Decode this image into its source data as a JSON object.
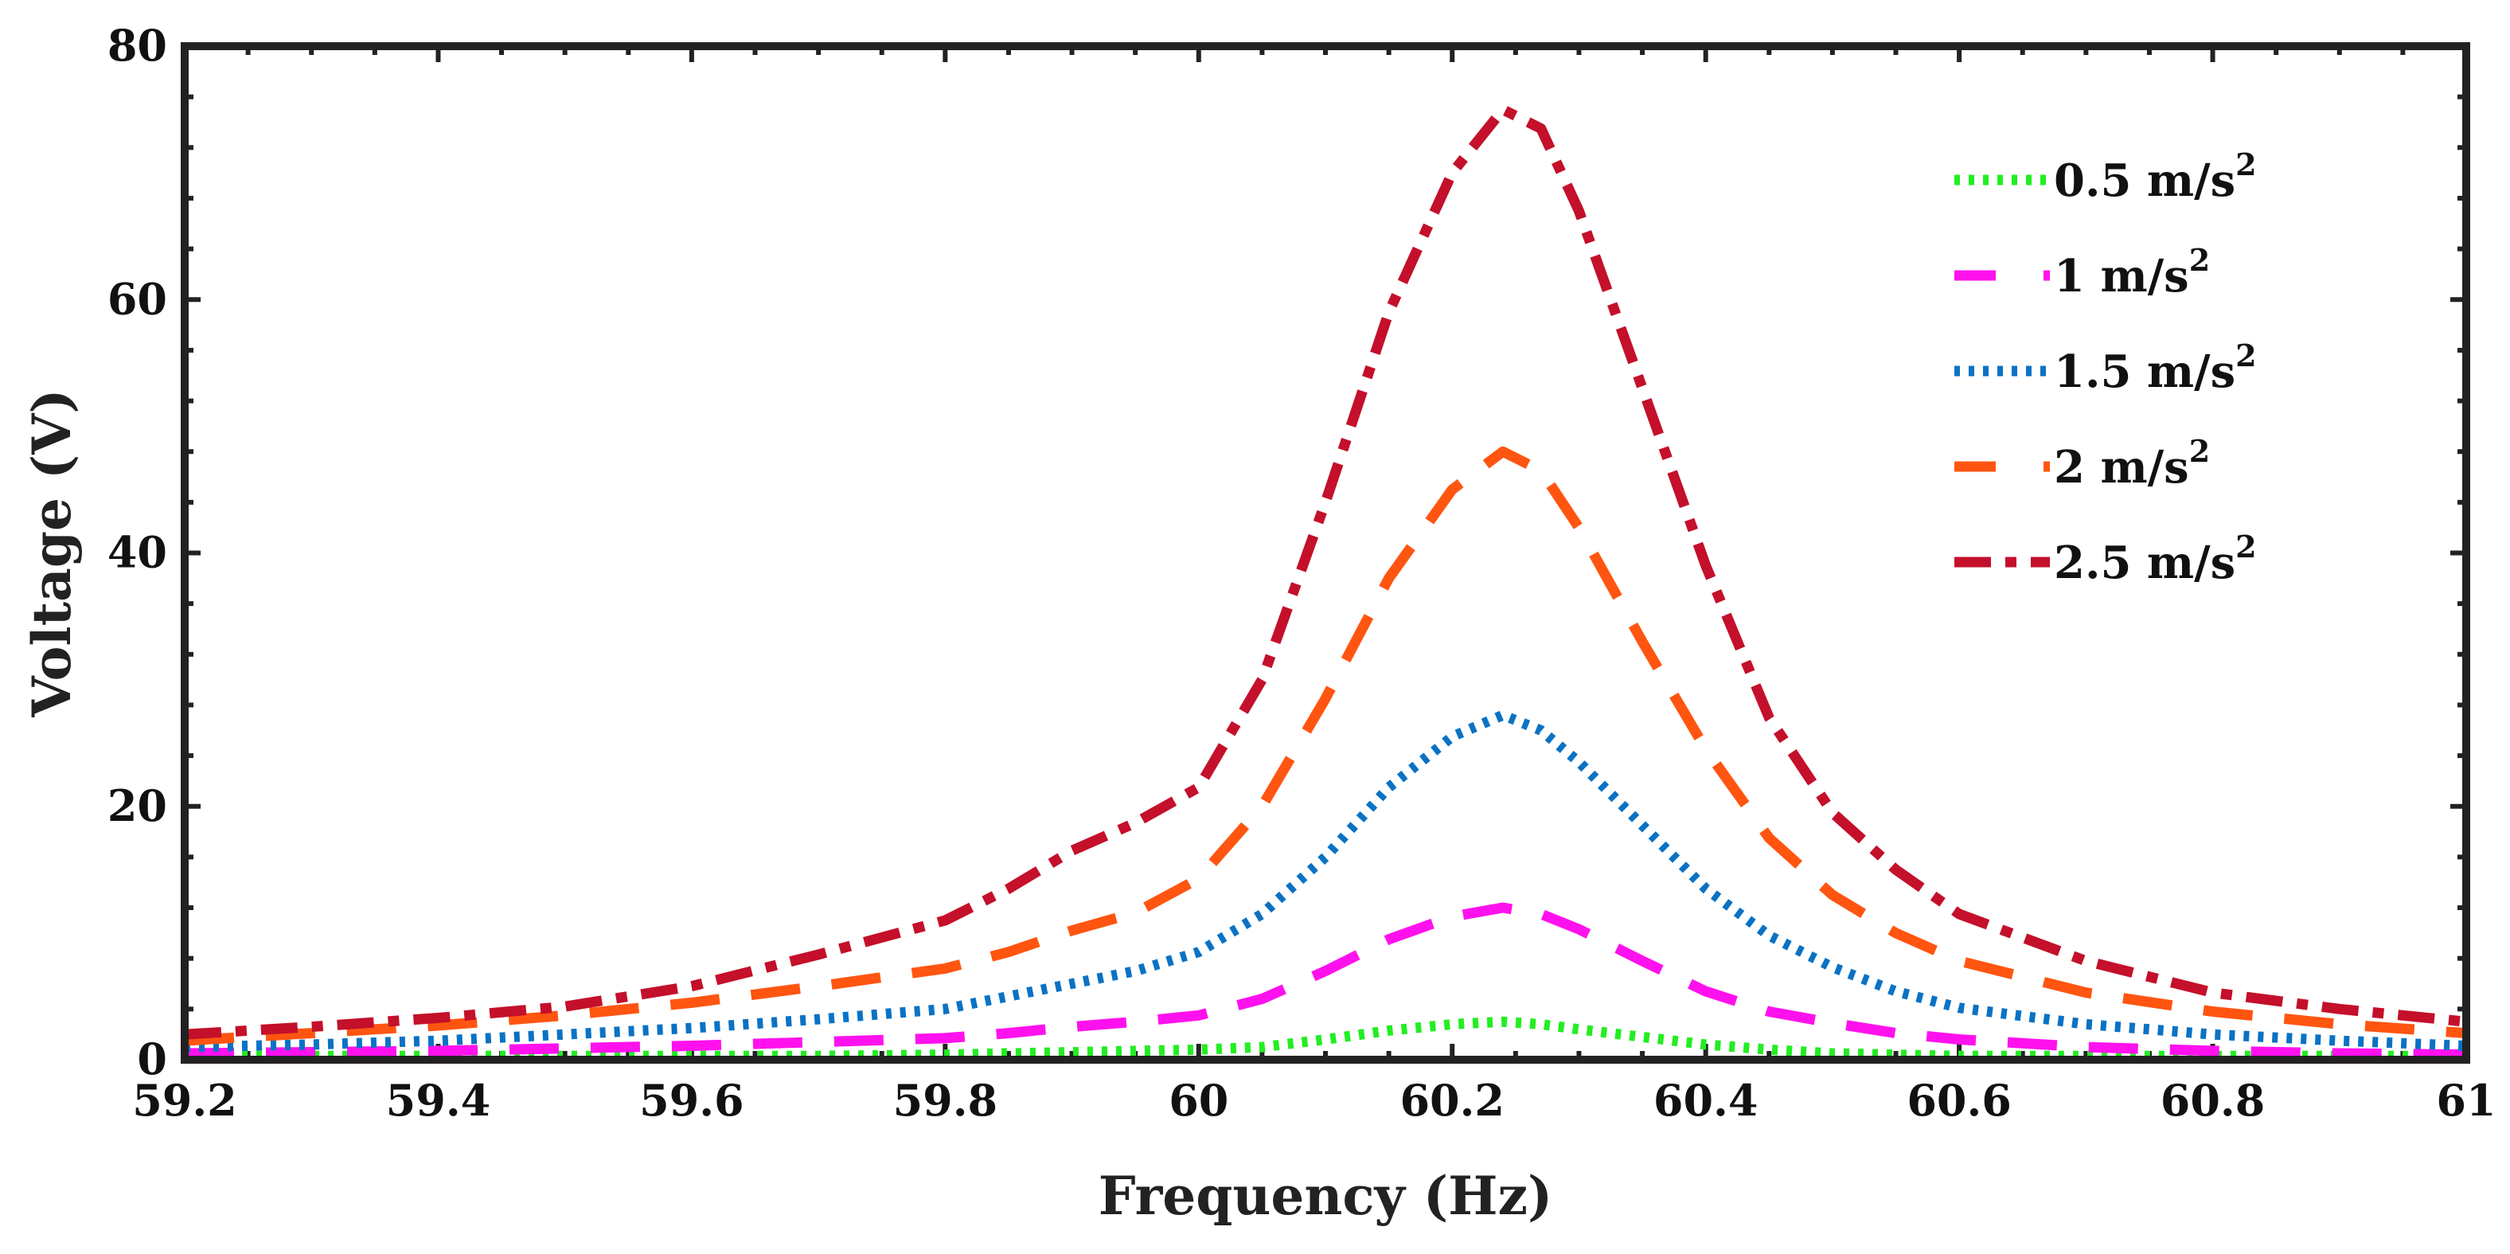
{
  "chart_data": {
    "type": "line",
    "title": "",
    "xlabel": "Frequency (Hz)",
    "ylabel": "Voltage (V)",
    "xlim": [
      59.2,
      61
    ],
    "ylim": [
      0,
      80
    ],
    "xticks": [
      59.2,
      59.4,
      59.6,
      59.8,
      60,
      60.2,
      60.4,
      60.6,
      60.8,
      61
    ],
    "xtick_labels": [
      "59.2",
      "59.4",
      "59.6",
      "59.8",
      "60",
      "60.2",
      "60.4",
      "60.6",
      "60.8",
      "61"
    ],
    "yticks": [
      0,
      20,
      40,
      60,
      80
    ],
    "ytick_labels": [
      "0",
      "20",
      "40",
      "60",
      "80"
    ],
    "grid": false,
    "legend_position": "top-right",
    "x": [
      59.2,
      59.3,
      59.4,
      59.5,
      59.6,
      59.7,
      59.8,
      59.85,
      59.9,
      59.95,
      60.0,
      60.05,
      60.1,
      60.15,
      60.2,
      60.24,
      60.27,
      60.3,
      60.35,
      60.4,
      60.45,
      60.5,
      60.55,
      60.6,
      60.7,
      60.8,
      60.9,
      61.0
    ],
    "series": [
      {
        "name": "0.5 m/s",
        "superscript": "2",
        "color": "#22ee22",
        "style": "dotted",
        "values": [
          0.3,
          0.3,
          0.3,
          0.3,
          0.3,
          0.3,
          0.4,
          0.5,
          0.6,
          0.7,
          0.8,
          1.0,
          1.6,
          2.3,
          2.8,
          3.0,
          2.8,
          2.4,
          1.8,
          1.2,
          0.8,
          0.5,
          0.4,
          0.3,
          0.3,
          0.3,
          0.3,
          0.3
        ]
      },
      {
        "name": "1 m/s",
        "superscript": "2",
        "color": "#ff11ee",
        "style": "dashed",
        "values": [
          0.5,
          0.6,
          0.7,
          0.9,
          1.1,
          1.4,
          1.7,
          2.1,
          2.6,
          3.0,
          3.5,
          4.8,
          7.0,
          9.5,
          11.3,
          12.0,
          11.5,
          10.3,
          7.8,
          5.4,
          3.8,
          2.9,
          2.1,
          1.6,
          1.0,
          0.7,
          0.5,
          0.4
        ]
      },
      {
        "name": "1.5 m/s",
        "superscript": "2",
        "color": "#0a72c4",
        "style": "dotted",
        "values": [
          1.0,
          1.2,
          1.5,
          2.0,
          2.5,
          3.2,
          4.0,
          5.0,
          6.0,
          7.0,
          8.5,
          11.5,
          16.0,
          21.5,
          25.5,
          27.2,
          26.0,
          23.5,
          18.5,
          13.5,
          9.8,
          7.3,
          5.4,
          4.1,
          2.8,
          2.0,
          1.5,
          1.1
        ]
      },
      {
        "name": "2 m/s",
        "superscript": "2",
        "color": "#ff5511",
        "style": "dashed",
        "values": [
          1.5,
          2.1,
          2.7,
          3.5,
          4.5,
          5.8,
          7.2,
          8.5,
          10.2,
          11.6,
          14.3,
          20.0,
          28.5,
          38.0,
          45.0,
          48.0,
          46.5,
          42.0,
          33.0,
          24.5,
          17.5,
          13.0,
          10.0,
          7.8,
          5.3,
          3.8,
          2.8,
          2.1
        ]
      },
      {
        "name": "2.5 m/s",
        "superscript": "2",
        "color": "#c4102a",
        "style": "dashdot",
        "values": [
          2.0,
          2.6,
          3.3,
          4.2,
          5.8,
          8.3,
          11.0,
          13.5,
          16.5,
          18.7,
          21.5,
          30.0,
          44.0,
          59.0,
          70.0,
          75.0,
          73.5,
          67.0,
          53.0,
          39.0,
          27.0,
          19.5,
          15.0,
          11.5,
          7.8,
          5.3,
          4.0,
          3.0
        ]
      }
    ]
  }
}
